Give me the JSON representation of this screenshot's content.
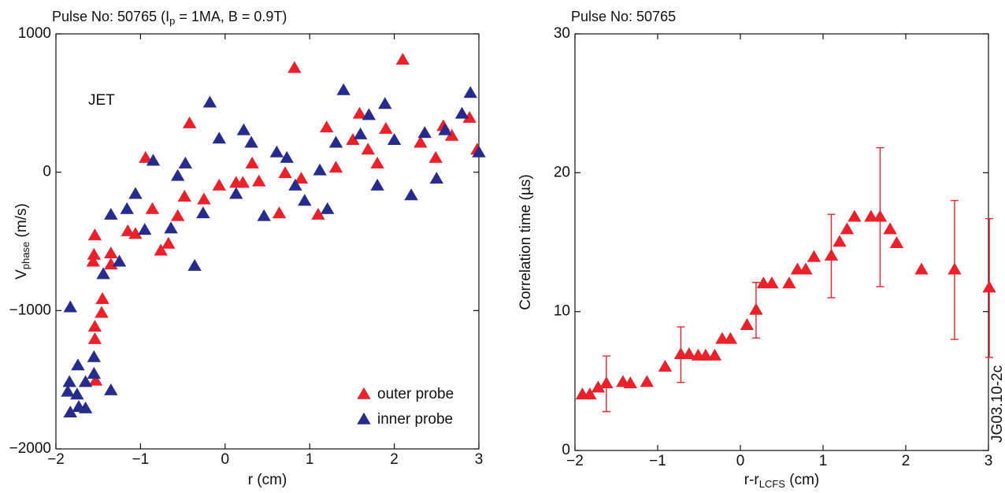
{
  "chart_data": [
    {
      "type": "scatter",
      "title": [
        "Pulse No: 50765 (I",
        "p",
        " = 1MA, B = 0.9T)"
      ],
      "xlabel": "r (cm)",
      "ylabel": [
        "V",
        "phase",
        " (m/s)"
      ],
      "annotation": "JET",
      "xlim": [
        -2,
        3
      ],
      "ylim": [
        -2000,
        1000
      ],
      "xticks": [
        {
          "value": -2,
          "label": "−2"
        },
        {
          "value": -1,
          "label": "−1"
        },
        0,
        1,
        2,
        3
      ],
      "yticks": [
        {
          "value": -2000,
          "label": "−2000"
        },
        {
          "value": -1000,
          "label": "−1000"
        },
        0,
        1000
      ],
      "legend": "lower right",
      "series": [
        {
          "name": "outer probe",
          "color": "#e8212b",
          "x": [
            2.1,
            0.82,
            -0.42,
            1.59,
            1.2,
            1.9,
            1.69,
            1.51,
            2.31,
            2.58,
            2.68,
            2.89,
            2.98,
            2.49,
            1.8,
            1.31,
            0.32,
            0.71,
            0.9,
            0.4,
            0.21,
            0.13,
            -0.07,
            -0.25,
            0.64,
            1.1,
            -0.48,
            -0.56,
            -0.67,
            -0.76,
            -0.86,
            -0.94,
            -1.06,
            -1.15,
            -1.35,
            -1.54,
            -1.55,
            -1.56,
            -1.35,
            -1.45,
            -1.46,
            -1.54,
            -1.54,
            -1.53
          ],
          "values": [
            810,
            750,
            350,
            420,
            320,
            310,
            160,
            230,
            210,
            330,
            260,
            390,
            160,
            100,
            60,
            30,
            60,
            -10,
            -50,
            -70,
            -80,
            -80,
            -100,
            -200,
            -300,
            -310,
            -180,
            -320,
            -520,
            -570,
            -270,
            100,
            -450,
            -430,
            -590,
            -460,
            -600,
            -650,
            -670,
            -920,
            -1020,
            -1120,
            -1210,
            -1510
          ]
        },
        {
          "name": "inner probe",
          "color": "#262b8c",
          "x": [
            1.4,
            -0.18,
            2.9,
            1.89,
            1.7,
            1.6,
            1.31,
            2.8,
            2.6,
            2.36,
            2.0,
            -0.07,
            0.22,
            0.31,
            0.61,
            0.73,
            -0.47,
            -0.85,
            -0.56,
            1.12,
            3.0,
            0.83,
            0.13,
            0.94,
            1.8,
            2.2,
            2.5,
            1.21,
            0.46,
            -0.26,
            -1.06,
            -1.16,
            -0.95,
            -0.64,
            -0.36,
            -1.35,
            -1.25,
            -1.44,
            -1.83,
            -1.55,
            -1.55,
            -1.74,
            -1.65,
            -1.35,
            -1.84,
            -1.75,
            -1.86,
            -1.73,
            -1.65,
            -1.83
          ],
          "values": [
            590,
            500,
            570,
            490,
            410,
            270,
            210,
            420,
            300,
            280,
            230,
            240,
            300,
            210,
            140,
            100,
            60,
            80,
            -30,
            10,
            140,
            -100,
            -160,
            -210,
            -100,
            -170,
            -50,
            -270,
            -320,
            -300,
            -160,
            -270,
            -420,
            -410,
            -680,
            -310,
            -650,
            -740,
            -980,
            -1340,
            -1460,
            -1400,
            -1520,
            -1580,
            -1520,
            -1610,
            -1590,
            -1700,
            -1710,
            -1740
          ]
        }
      ]
    },
    {
      "type": "scatter",
      "title": "Pulse No: 50765",
      "xlabel": [
        "r-r",
        "LCFS",
        " (cm)"
      ],
      "ylabel": "Correlation time (µs)",
      "annotation": "JG03.10-2c",
      "xlim": [
        -2,
        3
      ],
      "ylim": [
        0,
        30
      ],
      "xticks": [
        {
          "value": -2,
          "label": "−2"
        },
        {
          "value": -1,
          "label": "−1"
        },
        0,
        1,
        2,
        3
      ],
      "yticks": [
        0,
        10,
        20,
        30
      ],
      "series": [
        {
          "color": "#e8212b",
          "x": [
            -1.91,
            -1.82,
            -1.72,
            -1.62,
            -1.42,
            -1.33,
            -1.13,
            -0.91,
            -0.72,
            -0.62,
            -0.51,
            -0.42,
            -0.31,
            -0.22,
            -0.12,
            0.08,
            0.19,
            0.28,
            0.38,
            0.59,
            0.69,
            0.79,
            0.89,
            1.1,
            1.2,
            1.29,
            1.38,
            1.58,
            1.69,
            1.81,
            1.89,
            2.19,
            2.59,
            3.01
          ],
          "values": [
            4.0,
            4.0,
            4.5,
            4.8,
            4.9,
            4.8,
            4.9,
            6.0,
            6.9,
            6.9,
            6.8,
            6.8,
            6.8,
            8.0,
            8.0,
            9.0,
            10.1,
            12.0,
            12.0,
            12.0,
            13.0,
            13.0,
            13.9,
            14.0,
            15.0,
            15.9,
            16.8,
            16.8,
            16.8,
            15.9,
            14.9,
            13.0,
            13.0,
            11.7
          ],
          "yerr": [
            null,
            null,
            null,
            2,
            null,
            null,
            null,
            null,
            2,
            null,
            null,
            null,
            null,
            null,
            null,
            null,
            2,
            null,
            null,
            null,
            null,
            null,
            null,
            3,
            null,
            null,
            null,
            null,
            5,
            null,
            null,
            null,
            5,
            5
          ]
        }
      ]
    }
  ]
}
